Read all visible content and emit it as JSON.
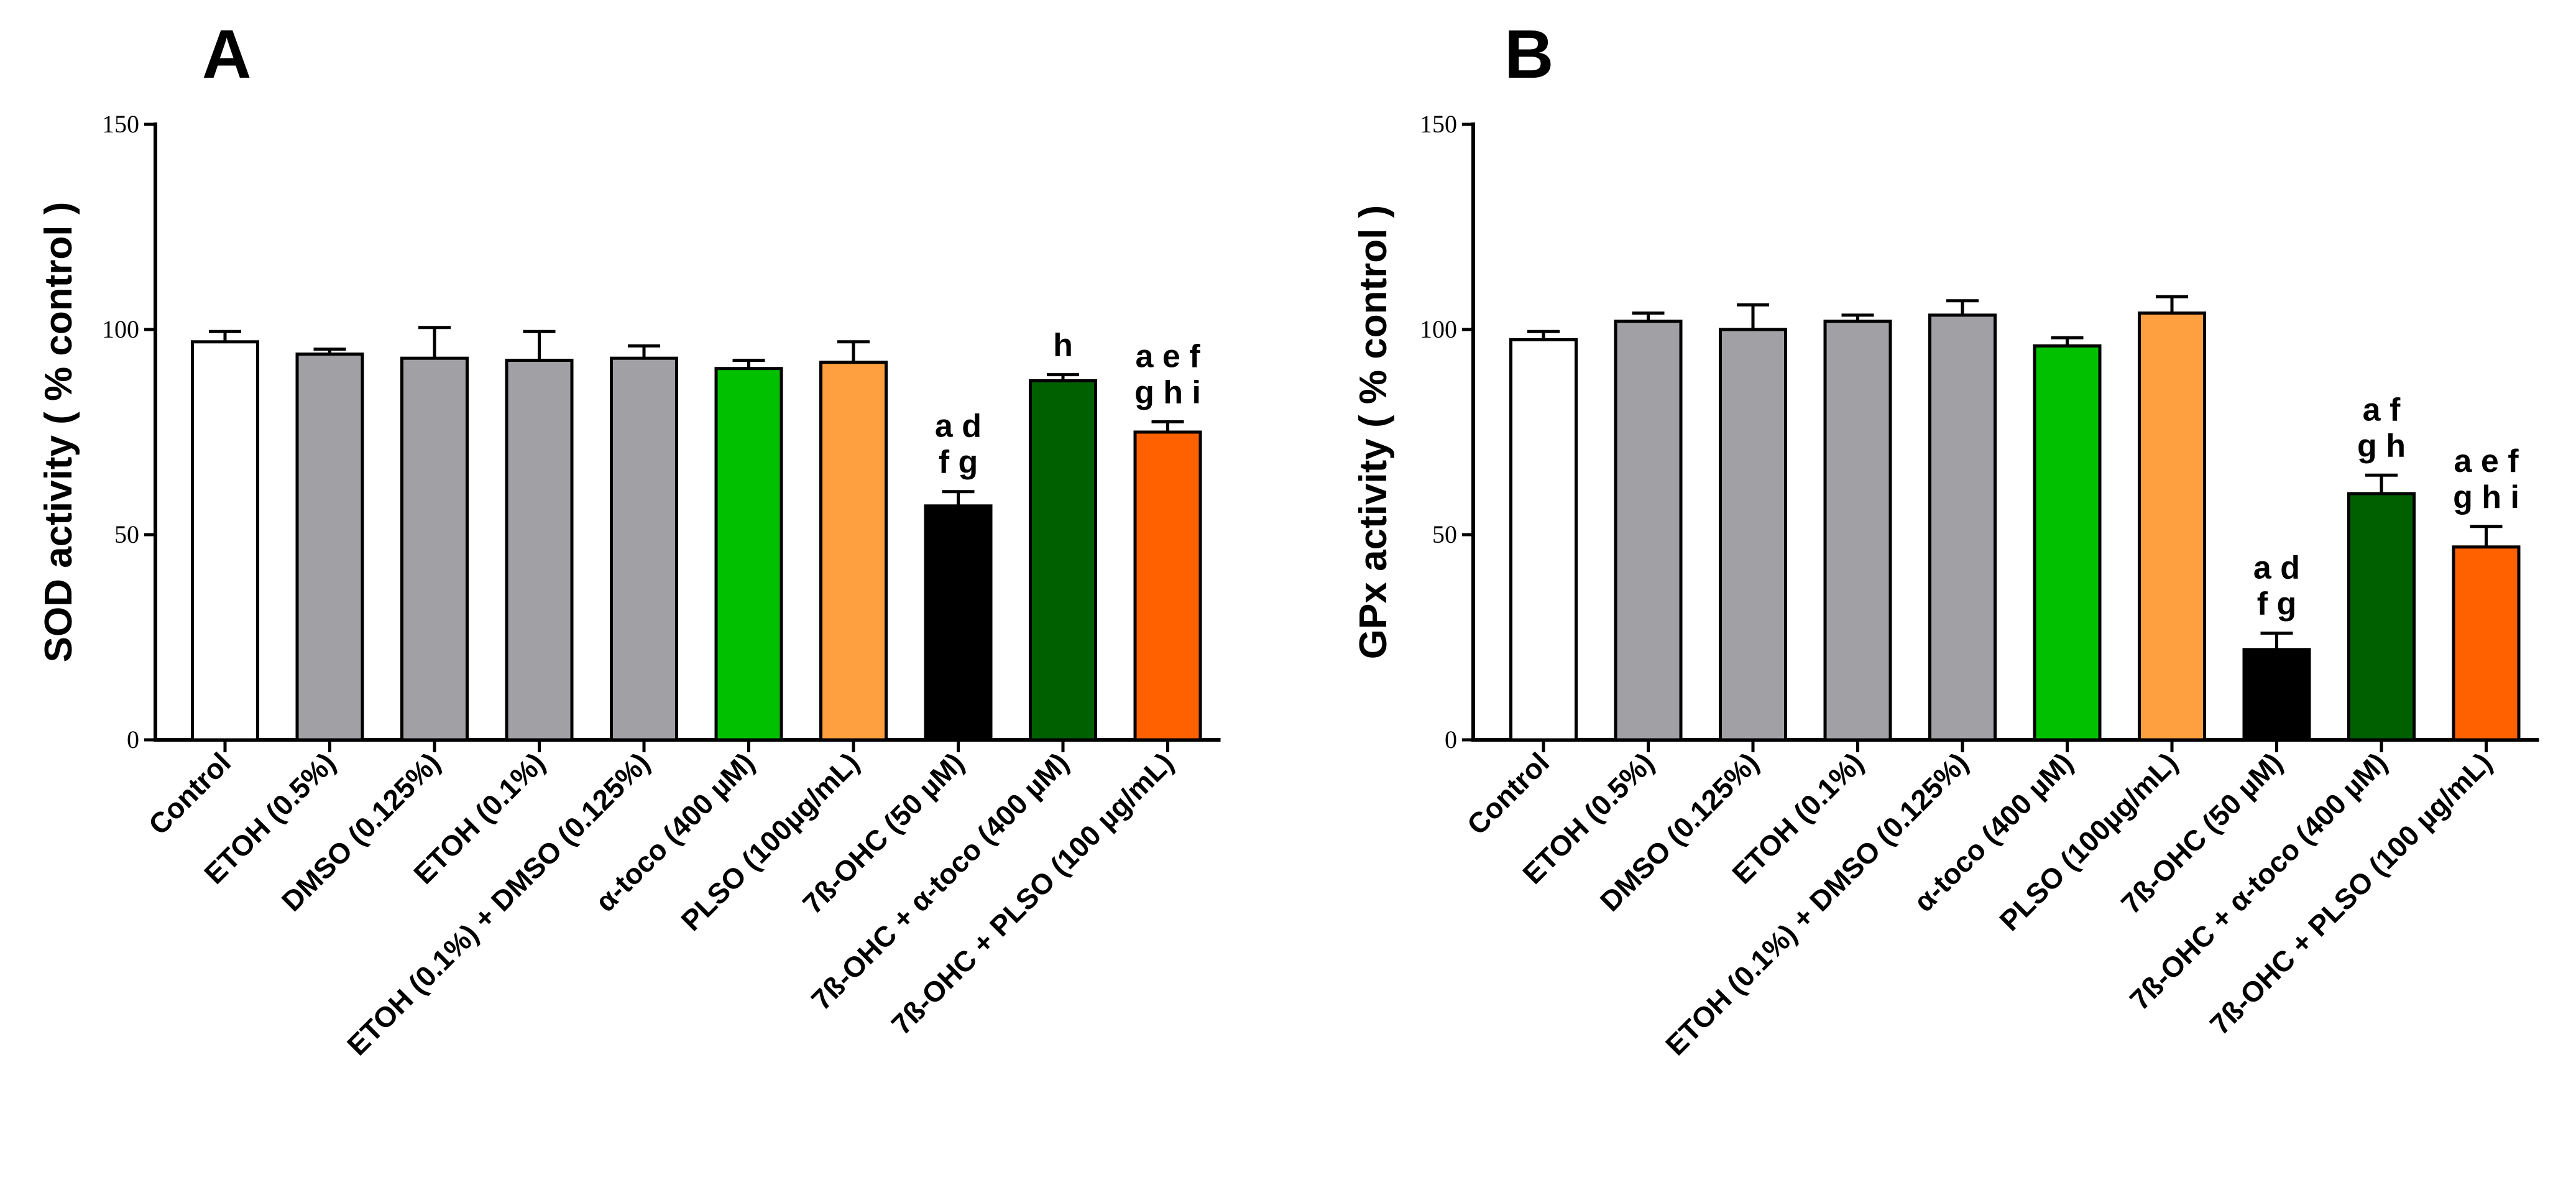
{
  "chart_data": [
    {
      "type": "bar",
      "panel": "A",
      "ylabel": "SOD activity ( % control )",
      "xlabel": "",
      "ylim": [
        0,
        150
      ],
      "yticks": [
        0,
        50,
        100,
        150
      ],
      "categories": [
        "Control",
        "ETOH (0.5%)",
        "DMSO (0.125%)",
        "ETOH (0.1%)",
        "ETOH (0.1%) + DMSO (0.125%)",
        "α-toco (400 µM)",
        "PLSO (100µg/mL)",
        "7ß-OHC (50 µM)",
        "7ß-OHC + α-toco (400 µM)",
        "7ß-OHC + PLSO (100 µg/mL)"
      ],
      "values": [
        97,
        94,
        93,
        92.5,
        93,
        90.5,
        92,
        57,
        87.5,
        75
      ],
      "errors": [
        2.5,
        1.2,
        7.5,
        7,
        3,
        2,
        5,
        3.5,
        1.5,
        2.5
      ],
      "colors": [
        "#ffffff",
        "#a0a0a5",
        "#a0a0a5",
        "#a0a0a5",
        "#a0a0a5",
        "#00c000",
        "#ffa040",
        "#000000",
        "#006000",
        "#ff6000"
      ],
      "annotations": [
        "",
        "",
        "",
        "",
        "",
        "",
        "",
        "a d\nf g",
        "h",
        "a e f\ng h i"
      ]
    },
    {
      "type": "bar",
      "panel": "B",
      "ylabel": "GPx activity ( % control )",
      "xlabel": "",
      "ylim": [
        0,
        150
      ],
      "yticks": [
        0,
        50,
        100,
        150
      ],
      "categories": [
        "Control",
        "ETOH (0.5%)",
        "DMSO (0.125%)",
        "ETOH (0.1%)",
        "ETOH (0.1%) + DMSO (0.125%)",
        "α-toco (400 µM)",
        "PLSO (100µg/mL)",
        "7ß-OHC (50 µM)",
        "7ß-OHC + α-toco (400 µM)",
        "7ß-OHC + PLSO (100 µg/mL)"
      ],
      "values": [
        97.5,
        102,
        100,
        102,
        103.5,
        96,
        104,
        22,
        60,
        47
      ],
      "errors": [
        2,
        2,
        6,
        1.5,
        3.5,
        2,
        4,
        4,
        4.5,
        5
      ],
      "colors": [
        "#ffffff",
        "#a0a0a5",
        "#a0a0a5",
        "#a0a0a5",
        "#a0a0a5",
        "#00c000",
        "#ffa040",
        "#000000",
        "#006000",
        "#ff6000"
      ],
      "annotations": [
        "",
        "",
        "",
        "",
        "",
        "",
        "",
        "a d\nf g",
        "a f\ng h",
        "a e f\ng h i"
      ]
    }
  ]
}
